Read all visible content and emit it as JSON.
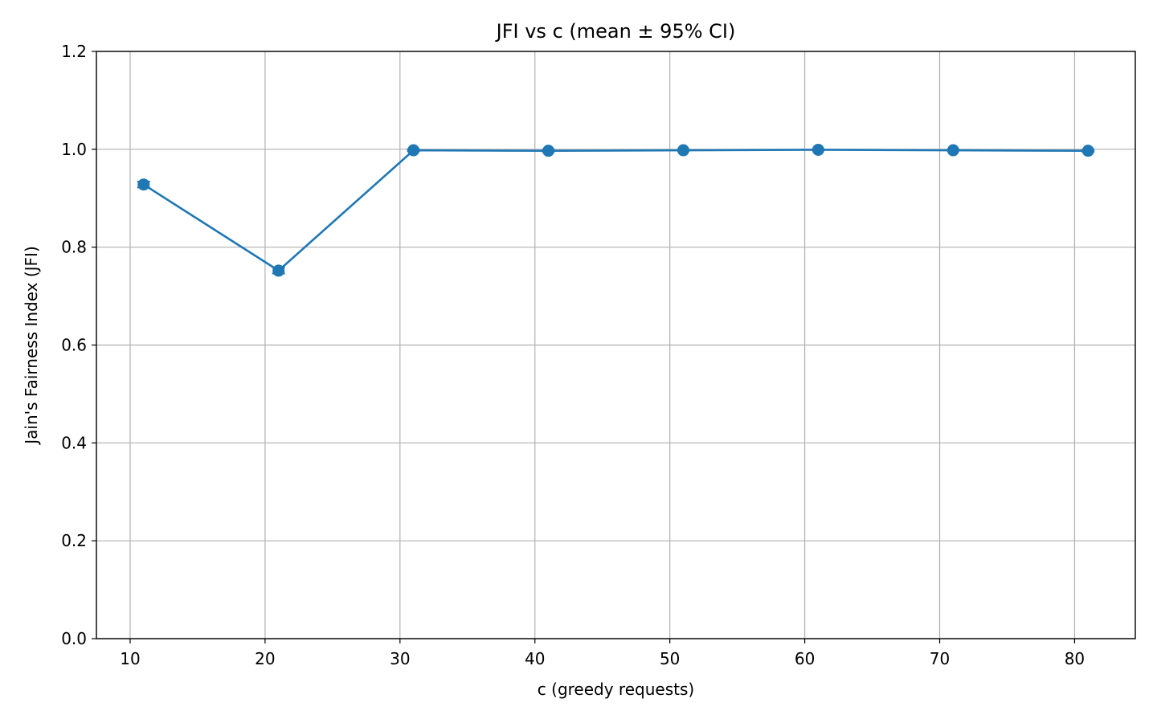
{
  "chart_data": {
    "type": "line",
    "title": "JFI vs c (mean ± 95% CI)",
    "xlabel": "c (greedy requests)",
    "ylabel": "Jain's Fairness Index (JFI)",
    "xlim": [
      7.5,
      84.5
    ],
    "ylim": [
      0.0,
      1.2
    ],
    "xticks": [
      10,
      20,
      30,
      40,
      50,
      60,
      70,
      80
    ],
    "yticks": [
      0.0,
      0.2,
      0.4,
      0.6,
      0.8,
      1.0,
      1.2
    ],
    "xtick_labels": [
      "10",
      "20",
      "30",
      "40",
      "50",
      "60",
      "70",
      "80"
    ],
    "ytick_labels": [
      "0.0",
      "0.2",
      "0.4",
      "0.6",
      "0.8",
      "1.0",
      "1.2"
    ],
    "grid": true,
    "series": [
      {
        "color": "#1f77b4",
        "x": [
          11,
          21,
          31,
          41,
          51,
          61,
          71,
          81
        ],
        "y": [
          0.928,
          0.752,
          0.998,
          0.997,
          0.998,
          0.999,
          0.998,
          0.997
        ],
        "ci": [
          0.006,
          0.006,
          0.002,
          0.002,
          0.001,
          0.001,
          0.001,
          0.002
        ]
      }
    ]
  }
}
